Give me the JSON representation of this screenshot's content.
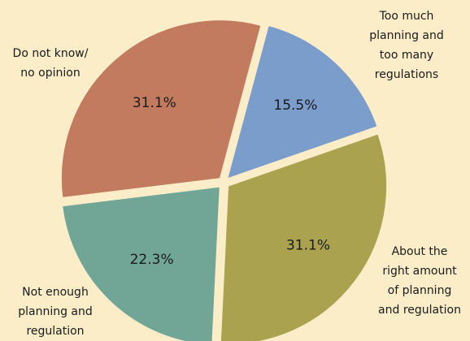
{
  "chart_data": {
    "type": "pie",
    "categories": [
      "Too much\nplanning and\ntoo many\nregulations",
      "About the\nright amount\nof planning\nand regulation",
      "Not enough\nplanning and\nregulation",
      "Do not know/\nno opinion"
    ],
    "values": [
      15.5,
      31.1,
      22.3,
      31.1
    ],
    "value_labels": [
      "15.5%",
      "31.1%",
      "22.3%",
      "31.1%"
    ],
    "colors": [
      "#7b9dcc",
      "#aba24f",
      "#71a696",
      "#c27b5f"
    ]
  }
}
